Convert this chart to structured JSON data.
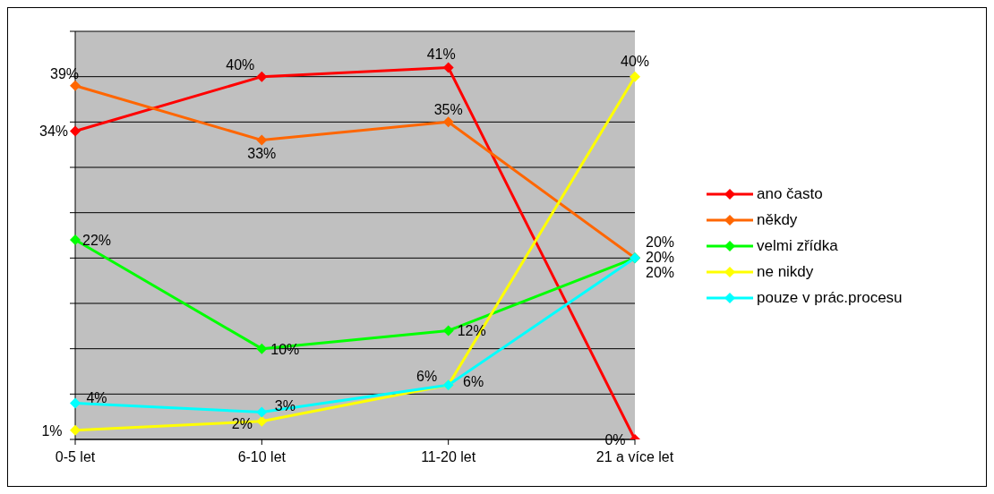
{
  "chart_data": {
    "type": "line",
    "categories": [
      "0-5 let",
      "6-10 let",
      "11-20 let",
      "21 a více let"
    ],
    "series": [
      {
        "name": "ano často",
        "color": "#ff0000",
        "values": [
          34,
          40,
          41,
          0
        ],
        "value_labels": [
          "34%",
          "40%",
          "41%",
          "0%"
        ]
      },
      {
        "name": "někdy",
        "color": "#ff6600",
        "values": [
          39,
          33,
          35,
          20
        ],
        "value_labels": [
          "39%",
          "33%",
          "35%",
          "20%"
        ]
      },
      {
        "name": "velmi zřídka",
        "color": "#00ff00",
        "values": [
          22,
          10,
          12,
          20
        ],
        "value_labels": [
          "22%",
          "10%",
          "12%",
          "20%"
        ]
      },
      {
        "name": "ne nikdy",
        "color": "#ffff00",
        "values": [
          1,
          2,
          6,
          40
        ],
        "value_labels": [
          "1%",
          "2%",
          "6%",
          "40%"
        ]
      },
      {
        "name": "pouze v prác.procesu",
        "color": "#00ffff",
        "values": [
          4,
          3,
          6,
          20
        ],
        "value_labels": [
          "4%",
          "3%",
          "6%",
          "20%"
        ]
      }
    ],
    "ylim": [
      0,
      45
    ],
    "yticks": [
      {
        "value": 0,
        "label": null
      },
      {
        "value": 5,
        "label": null
      },
      {
        "value": 10,
        "label": null
      },
      {
        "value": 15,
        "label": null
      },
      {
        "value": 20,
        "label": null
      },
      {
        "value": 25,
        "label": null
      },
      {
        "value": 30,
        "label": null
      },
      {
        "value": 35,
        "label": null
      },
      {
        "value": 40,
        "label": null
      },
      {
        "value": 45,
        "label": null
      }
    ],
    "grid": "y",
    "tick_labels": "x",
    "legend": "right",
    "marker": "diamond",
    "line_style": "solid"
  }
}
